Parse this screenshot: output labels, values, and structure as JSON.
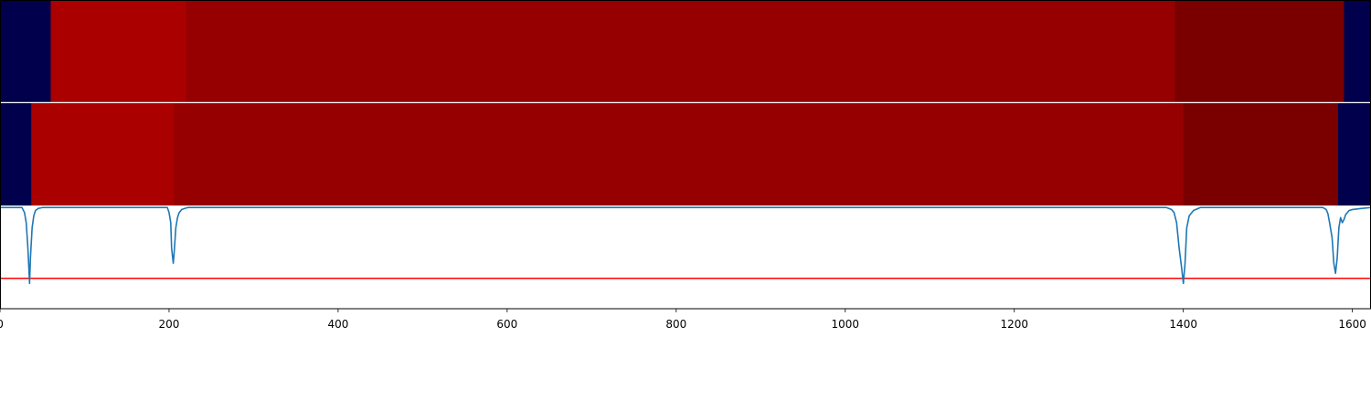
{
  "chart_data": [
    {
      "type": "heatmap",
      "name": "segment-row-1",
      "xlim": [
        0,
        1622
      ],
      "segments": [
        {
          "x0": 0,
          "x1": 60,
          "color": "#00004c"
        },
        {
          "x0": 60,
          "x1": 220,
          "color": "#aa0000"
        },
        {
          "x0": 220,
          "x1": 1390,
          "color": "#960000"
        },
        {
          "x0": 1390,
          "x1": 1590,
          "color": "#7a0000"
        },
        {
          "x0": 1590,
          "x1": 1622,
          "color": "#00004c"
        }
      ]
    },
    {
      "type": "heatmap",
      "name": "segment-row-2",
      "xlim": [
        0,
        1622
      ],
      "segments": [
        {
          "x0": 0,
          "x1": 37,
          "color": "#00004c"
        },
        {
          "x0": 37,
          "x1": 206,
          "color": "#aa0000"
        },
        {
          "x0": 206,
          "x1": 1400,
          "color": "#960000"
        },
        {
          "x0": 1400,
          "x1": 1583,
          "color": "#7a0000"
        },
        {
          "x0": 1583,
          "x1": 1622,
          "color": "#00004c"
        }
      ]
    },
    {
      "type": "line",
      "xlim": [
        0,
        1622
      ],
      "ylim": [
        -1.0,
        0.02
      ],
      "xticks": [
        0,
        200,
        400,
        600,
        800,
        1000,
        1200,
        1400,
        1600
      ],
      "threshold": -0.7,
      "threshold_color": "#ff0000",
      "line_color": "#1f77b4",
      "series": [
        {
          "x": [
            0,
            26,
            29,
            31,
            33,
            35,
            36,
            38,
            40,
            42,
            45,
            50,
            198,
            200,
            202,
            203,
            205,
            206,
            208,
            210,
            212,
            215,
            222,
            1380,
            1386,
            1389,
            1392,
            1395,
            1398,
            1400,
            1402,
            1404,
            1407,
            1412,
            1420,
            1565,
            1569,
            1571,
            1573,
            1576,
            1578,
            1580,
            1582,
            1584,
            1586,
            1588,
            1590,
            1592,
            1594,
            1596,
            1600,
            1610,
            1622
          ],
          "y": [
            0.0,
            0.0,
            -0.05,
            -0.15,
            -0.4,
            -0.75,
            -0.5,
            -0.2,
            -0.08,
            -0.03,
            -0.01,
            0.0,
            0.0,
            -0.05,
            -0.15,
            -0.4,
            -0.55,
            -0.45,
            -0.2,
            -0.1,
            -0.05,
            -0.02,
            0.0,
            0.0,
            -0.02,
            -0.05,
            -0.15,
            -0.4,
            -0.6,
            -0.75,
            -0.55,
            -0.2,
            -0.08,
            -0.03,
            0.0,
            0.0,
            -0.02,
            -0.06,
            -0.15,
            -0.3,
            -0.55,
            -0.65,
            -0.5,
            -0.2,
            -0.1,
            -0.15,
            -0.12,
            -0.07,
            -0.05,
            -0.03,
            -0.02,
            -0.01,
            0.0
          ]
        }
      ]
    }
  ]
}
